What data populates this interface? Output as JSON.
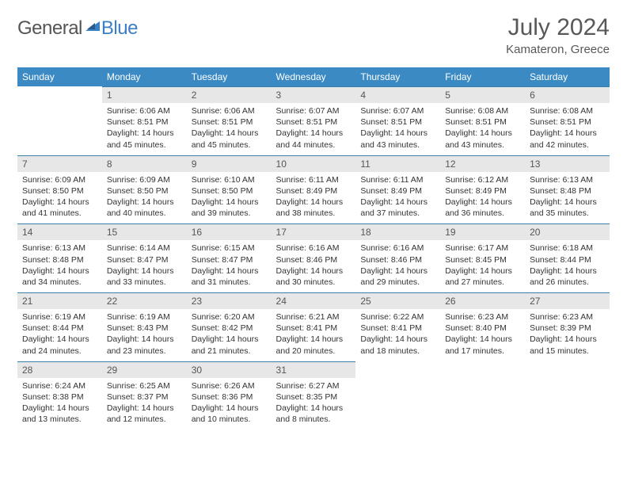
{
  "brand": {
    "part1": "General",
    "part2": "Blue"
  },
  "title": "July 2024",
  "location": "Kamateron, Greece",
  "colors": {
    "header_bg": "#3b8ac4",
    "daynum_bg": "#e7e7e7",
    "border": "#3b7fa8",
    "text": "#333333",
    "title": "#585858"
  },
  "weekdays": [
    "Sunday",
    "Monday",
    "Tuesday",
    "Wednesday",
    "Thursday",
    "Friday",
    "Saturday"
  ],
  "weeks": [
    [
      null,
      {
        "n": "1",
        "sr": "6:06 AM",
        "ss": "8:51 PM",
        "dh": "14",
        "dm": "45"
      },
      {
        "n": "2",
        "sr": "6:06 AM",
        "ss": "8:51 PM",
        "dh": "14",
        "dm": "45"
      },
      {
        "n": "3",
        "sr": "6:07 AM",
        "ss": "8:51 PM",
        "dh": "14",
        "dm": "44"
      },
      {
        "n": "4",
        "sr": "6:07 AM",
        "ss": "8:51 PM",
        "dh": "14",
        "dm": "43"
      },
      {
        "n": "5",
        "sr": "6:08 AM",
        "ss": "8:51 PM",
        "dh": "14",
        "dm": "43"
      },
      {
        "n": "6",
        "sr": "6:08 AM",
        "ss": "8:51 PM",
        "dh": "14",
        "dm": "42"
      }
    ],
    [
      {
        "n": "7",
        "sr": "6:09 AM",
        "ss": "8:50 PM",
        "dh": "14",
        "dm": "41"
      },
      {
        "n": "8",
        "sr": "6:09 AM",
        "ss": "8:50 PM",
        "dh": "14",
        "dm": "40"
      },
      {
        "n": "9",
        "sr": "6:10 AM",
        "ss": "8:50 PM",
        "dh": "14",
        "dm": "39"
      },
      {
        "n": "10",
        "sr": "6:11 AM",
        "ss": "8:49 PM",
        "dh": "14",
        "dm": "38"
      },
      {
        "n": "11",
        "sr": "6:11 AM",
        "ss": "8:49 PM",
        "dh": "14",
        "dm": "37"
      },
      {
        "n": "12",
        "sr": "6:12 AM",
        "ss": "8:49 PM",
        "dh": "14",
        "dm": "36"
      },
      {
        "n": "13",
        "sr": "6:13 AM",
        "ss": "8:48 PM",
        "dh": "14",
        "dm": "35"
      }
    ],
    [
      {
        "n": "14",
        "sr": "6:13 AM",
        "ss": "8:48 PM",
        "dh": "14",
        "dm": "34"
      },
      {
        "n": "15",
        "sr": "6:14 AM",
        "ss": "8:47 PM",
        "dh": "14",
        "dm": "33"
      },
      {
        "n": "16",
        "sr": "6:15 AM",
        "ss": "8:47 PM",
        "dh": "14",
        "dm": "31"
      },
      {
        "n": "17",
        "sr": "6:16 AM",
        "ss": "8:46 PM",
        "dh": "14",
        "dm": "30"
      },
      {
        "n": "18",
        "sr": "6:16 AM",
        "ss": "8:46 PM",
        "dh": "14",
        "dm": "29"
      },
      {
        "n": "19",
        "sr": "6:17 AM",
        "ss": "8:45 PM",
        "dh": "14",
        "dm": "27"
      },
      {
        "n": "20",
        "sr": "6:18 AM",
        "ss": "8:44 PM",
        "dh": "14",
        "dm": "26"
      }
    ],
    [
      {
        "n": "21",
        "sr": "6:19 AM",
        "ss": "8:44 PM",
        "dh": "14",
        "dm": "24"
      },
      {
        "n": "22",
        "sr": "6:19 AM",
        "ss": "8:43 PM",
        "dh": "14",
        "dm": "23"
      },
      {
        "n": "23",
        "sr": "6:20 AM",
        "ss": "8:42 PM",
        "dh": "14",
        "dm": "21"
      },
      {
        "n": "24",
        "sr": "6:21 AM",
        "ss": "8:41 PM",
        "dh": "14",
        "dm": "20"
      },
      {
        "n": "25",
        "sr": "6:22 AM",
        "ss": "8:41 PM",
        "dh": "14",
        "dm": "18"
      },
      {
        "n": "26",
        "sr": "6:23 AM",
        "ss": "8:40 PM",
        "dh": "14",
        "dm": "17"
      },
      {
        "n": "27",
        "sr": "6:23 AM",
        "ss": "8:39 PM",
        "dh": "14",
        "dm": "15"
      }
    ],
    [
      {
        "n": "28",
        "sr": "6:24 AM",
        "ss": "8:38 PM",
        "dh": "14",
        "dm": "13"
      },
      {
        "n": "29",
        "sr": "6:25 AM",
        "ss": "8:37 PM",
        "dh": "14",
        "dm": "12"
      },
      {
        "n": "30",
        "sr": "6:26 AM",
        "ss": "8:36 PM",
        "dh": "14",
        "dm": "10"
      },
      {
        "n": "31",
        "sr": "6:27 AM",
        "ss": "8:35 PM",
        "dh": "14",
        "dm": "8"
      },
      null,
      null,
      null
    ]
  ]
}
